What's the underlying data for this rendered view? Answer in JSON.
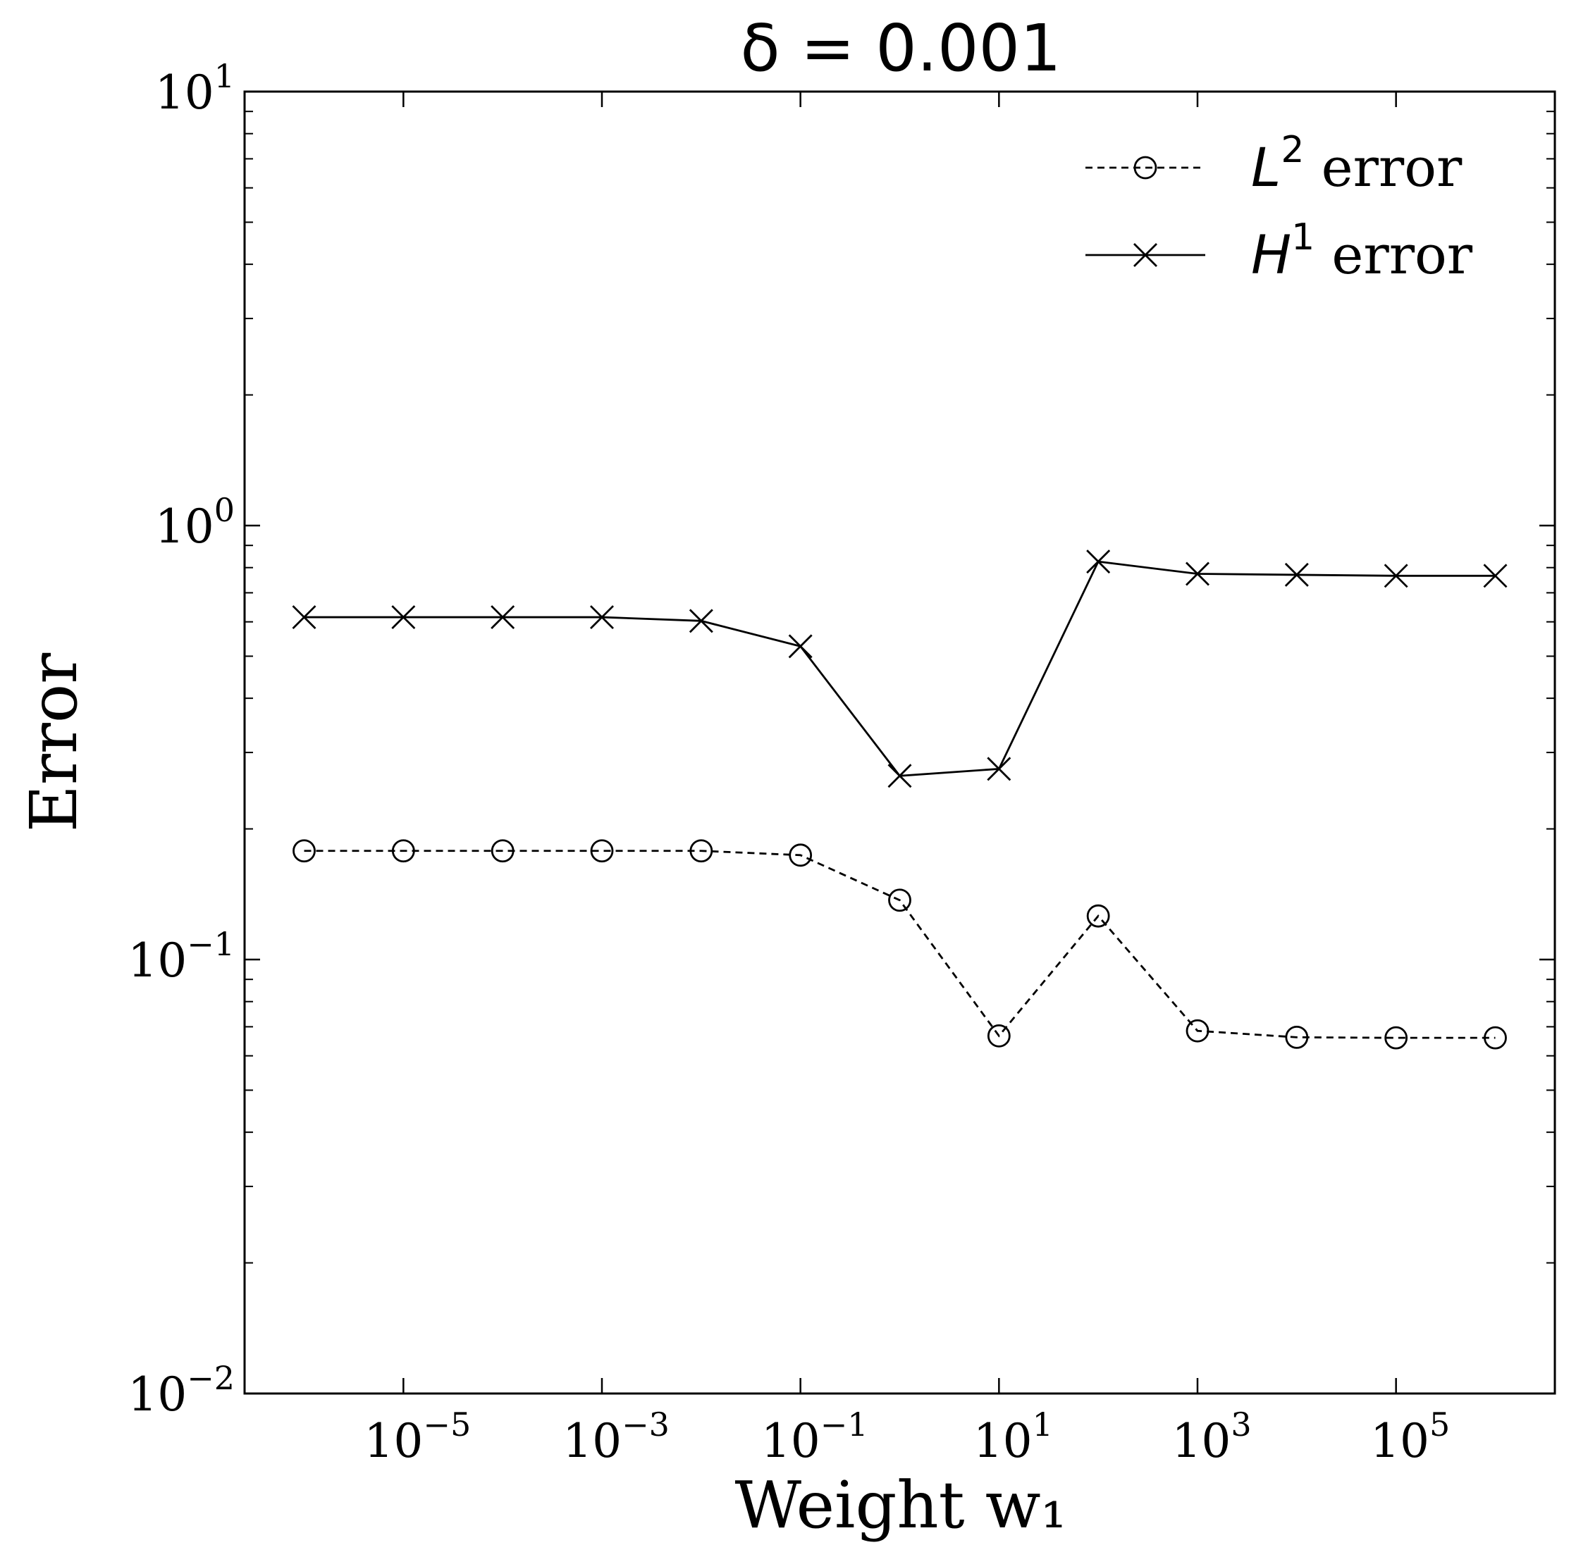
{
  "chart_data": {
    "type": "line",
    "title": "δ = 0.001",
    "xlabel": "Weight w₁",
    "ylabel": "Error",
    "xscale": "log",
    "yscale": "log",
    "xlim_log10": [
      -6.6,
      6.6
    ],
    "ylim": [
      0.01,
      10
    ],
    "x_ticks": [
      {
        "exp": -5,
        "base": "10",
        "sup": "−5"
      },
      {
        "exp": -3,
        "base": "10",
        "sup": "−3"
      },
      {
        "exp": -1,
        "base": "10",
        "sup": "−1"
      },
      {
        "exp": 1,
        "base": "10",
        "sup": "1"
      },
      {
        "exp": 3,
        "base": "10",
        "sup": "3"
      },
      {
        "exp": 5,
        "base": "10",
        "sup": "5"
      }
    ],
    "y_ticks": [
      {
        "exp": 1,
        "base": "10",
        "sup": "1"
      },
      {
        "exp": 0,
        "base": "10",
        "sup": "0"
      },
      {
        "exp": -1,
        "base": "10",
        "sup": "−1"
      },
      {
        "exp": -2,
        "base": "10",
        "sup": "−2"
      }
    ],
    "grid": false,
    "legend_position": "top-right",
    "x": [
      1e-06,
      1e-05,
      0.0001,
      0.001,
      0.01,
      0.1,
      1,
      10,
      100,
      1000,
      10000,
      100000,
      1000000
    ],
    "series": [
      {
        "name": "L² error",
        "label_main": "L",
        "label_sup": "2",
        "label_rest": " error",
        "style": "dashed",
        "marker": "circle",
        "values": [
          0.178,
          0.178,
          0.178,
          0.178,
          0.178,
          0.174,
          0.137,
          0.0667,
          0.126,
          0.0685,
          0.0662,
          0.066,
          0.066
        ]
      },
      {
        "name": "H¹ error",
        "label_main": "H",
        "label_sup": "1",
        "label_rest": " error",
        "style": "solid",
        "marker": "x",
        "values": [
          0.615,
          0.615,
          0.615,
          0.615,
          0.603,
          0.527,
          0.265,
          0.275,
          0.826,
          0.774,
          0.77,
          0.766,
          0.766
        ]
      }
    ]
  }
}
